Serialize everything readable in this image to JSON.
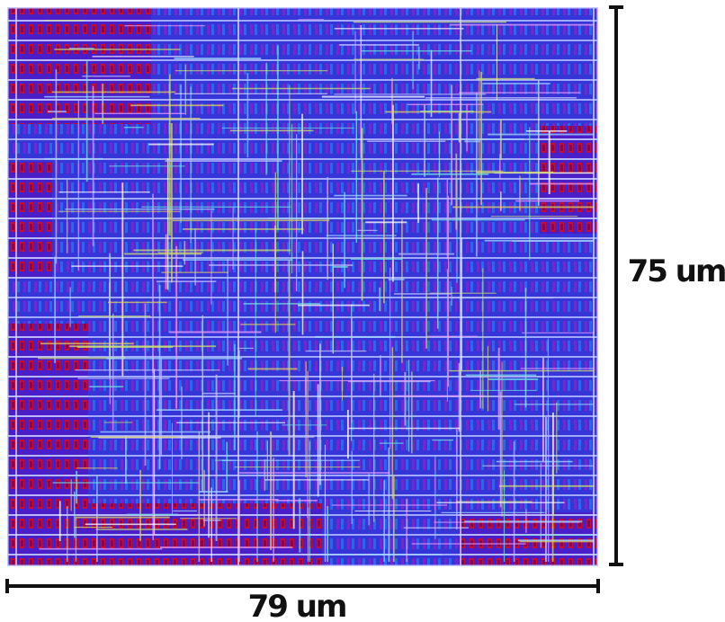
{
  "dimensions": {
    "height": "75 um",
    "width": "79 um"
  }
}
